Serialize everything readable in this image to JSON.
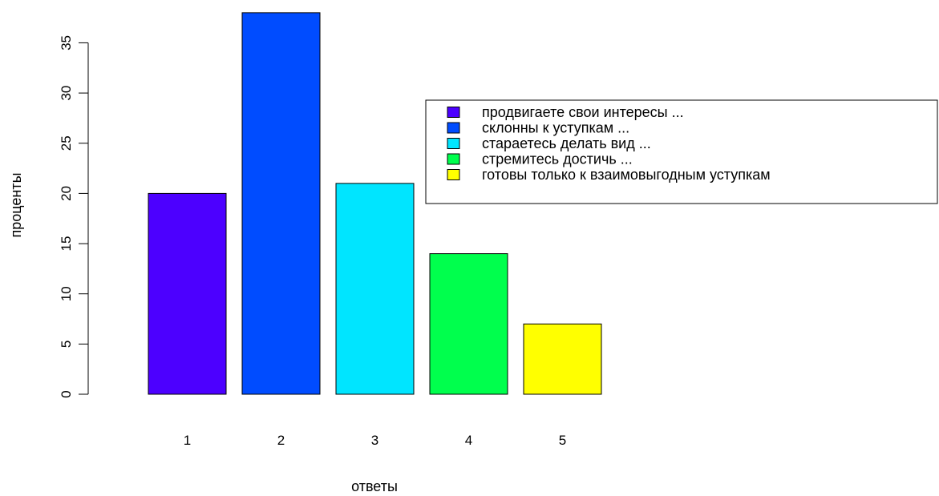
{
  "chart_data": {
    "type": "bar",
    "title": "",
    "xlabel": "ответы",
    "ylabel": "проценты",
    "categories": [
      "1",
      "2",
      "3",
      "4",
      "5"
    ],
    "values": [
      20,
      38,
      21,
      14,
      7
    ],
    "colors": [
      "#4c00ff",
      "#004cff",
      "#00e5ff",
      "#00ff4d",
      "#ffff00"
    ],
    "yticks": [
      0,
      5,
      10,
      15,
      20,
      25,
      30,
      35
    ],
    "ylim": [
      0,
      38
    ],
    "grid": false,
    "legend": {
      "position": "top-right",
      "entries": [
        "продвигаете свои интересы ...",
        "склонны к уступкам ...",
        "стараетесь делать вид ...",
        "стремитесь достичь ...",
        "готовы только к взаимовыгодным уступкам"
      ]
    }
  }
}
